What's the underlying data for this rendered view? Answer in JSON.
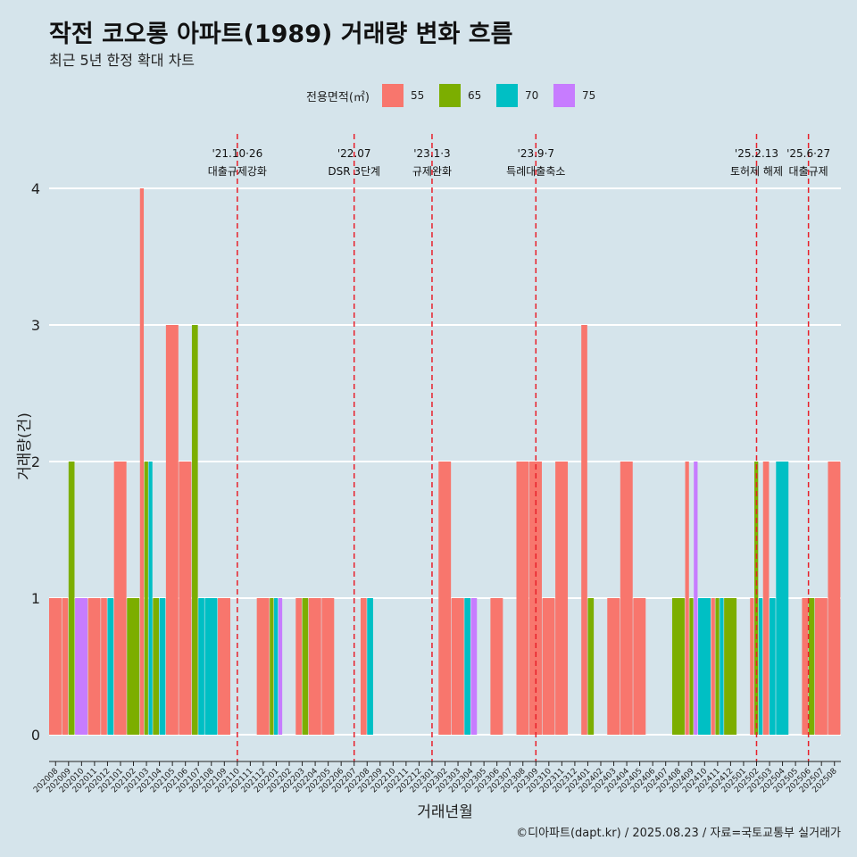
{
  "chart_data": {
    "type": "bar",
    "title": "작전 코오롱 아파트(1989) 거래량 변화 흐름",
    "subtitle": "최근 5년 한정 확대 차트",
    "xlabel": "거래년월",
    "ylabel": "거래량(건)",
    "ylim": [
      0,
      4
    ],
    "yticks": [
      "0",
      "1",
      "2",
      "3",
      "4"
    ],
    "grid": true,
    "legend": {
      "title": "전용면적(㎡)",
      "placement": "top"
    },
    "caption": "©디아파트(dapt.kr) / 2025.08.23 / 자료=국토교통부 실거래가",
    "categories": [
      "202008",
      "202009",
      "202010",
      "202011",
      "202012",
      "202101",
      "202102",
      "202103",
      "202104",
      "202105",
      "202106",
      "202107",
      "202108",
      "202109",
      "202110",
      "202111",
      "202112",
      "202201",
      "202202",
      "202203",
      "202204",
      "202205",
      "202206",
      "202207",
      "202208",
      "202209",
      "202210",
      "202211",
      "202212",
      "202301",
      "202302",
      "202303",
      "202304",
      "202305",
      "202306",
      "202307",
      "202308",
      "202309",
      "202310",
      "202311",
      "202312",
      "202401",
      "202402",
      "202403",
      "202404",
      "202405",
      "202406",
      "202407",
      "202408",
      "202409",
      "202410",
      "202411",
      "202412",
      "202501",
      "202502",
      "202503",
      "202504",
      "202505",
      "202506",
      "202507",
      "202508"
    ],
    "series": [
      {
        "name": "55",
        "color": "#f8766d",
        "values": [
          1,
          1,
          0,
          1,
          1,
          2,
          0,
          4,
          0,
          3,
          2,
          0,
          0,
          1,
          0,
          0,
          1,
          0,
          0,
          1,
          1,
          1,
          0,
          0,
          1,
          0,
          0,
          0,
          0,
          0,
          2,
          1,
          0,
          0,
          1,
          0,
          2,
          2,
          1,
          2,
          0,
          3,
          0,
          1,
          2,
          1,
          0,
          0,
          0,
          2,
          0,
          1,
          0,
          0,
          1,
          2,
          0,
          0,
          1,
          1,
          2
        ]
      },
      {
        "name": "65",
        "color": "#7cae00",
        "values": [
          0,
          2,
          0,
          0,
          0,
          0,
          1,
          2,
          1,
          0,
          0,
          3,
          0,
          0,
          0,
          0,
          0,
          1,
          0,
          1,
          0,
          0,
          0,
          0,
          0,
          0,
          0,
          0,
          0,
          0,
          0,
          0,
          0,
          0,
          0,
          0,
          0,
          0,
          0,
          0,
          0,
          1,
          0,
          0,
          0,
          0,
          0,
          0,
          1,
          1,
          0,
          1,
          1,
          0,
          2,
          0,
          0,
          0,
          1,
          0,
          0
        ]
      },
      {
        "name": "70",
        "color": "#00bfc4",
        "values": [
          0,
          0,
          0,
          0,
          1,
          0,
          0,
          2,
          1,
          0,
          0,
          1,
          1,
          0,
          0,
          0,
          0,
          1,
          0,
          0,
          0,
          0,
          0,
          0,
          1,
          0,
          0,
          0,
          0,
          0,
          0,
          0,
          1,
          0,
          0,
          0,
          0,
          0,
          0,
          0,
          0,
          0,
          0,
          0,
          0,
          0,
          0,
          0,
          0,
          0,
          1,
          1,
          0,
          0,
          1,
          1,
          2,
          0,
          0,
          0,
          0
        ]
      },
      {
        "name": "75",
        "color": "#c77cff",
        "values": [
          0,
          0,
          1,
          0,
          0,
          0,
          0,
          0,
          0,
          0,
          0,
          0,
          0,
          0,
          0,
          0,
          0,
          1,
          0,
          0,
          0,
          0,
          0,
          0,
          0,
          0,
          0,
          0,
          0,
          0,
          0,
          0,
          1,
          0,
          0,
          0,
          0,
          0,
          0,
          0,
          0,
          0,
          0,
          0,
          0,
          0,
          0,
          0,
          0,
          2,
          0,
          0,
          0,
          0,
          0,
          0,
          0,
          0,
          0,
          0,
          0
        ]
      }
    ],
    "annotations": [
      {
        "at": "202110",
        "date": "'21.10·26",
        "label": "대출규제강화"
      },
      {
        "at": "202207",
        "date": "'22.07",
        "label": "DSR 3단계"
      },
      {
        "at": "202301",
        "date": "'23.1·3",
        "label": "규제완화"
      },
      {
        "at": "202309",
        "date": "'23.9·7",
        "label": "특례대출축소"
      },
      {
        "at": "202502",
        "date": "'25.2.13",
        "label": "토허제 해제"
      },
      {
        "at": "202506",
        "date": "'25.6·27",
        "label": "대출규제"
      }
    ]
  }
}
